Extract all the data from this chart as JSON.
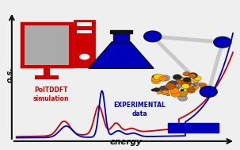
{
  "bg_color": "#efefef",
  "red_color": "#cc0000",
  "blue_color": "#0000bb",
  "black_color": "#111111",
  "axis_color": "#111111",
  "gray_color": "#c8c8c8",
  "screen_color": "#aaaaaa",
  "ylabel": "o.s.",
  "xlabel": "energy",
  "poltddft_label": "PolTDDFT\nsimulation",
  "experimental_label": "EXPERIMENTAL\ndata",
  "figsize": [
    3.03,
    1.89
  ],
  "dpi": 100,
  "xlim": [
    0,
    1
  ],
  "ylim": [
    0,
    1
  ]
}
